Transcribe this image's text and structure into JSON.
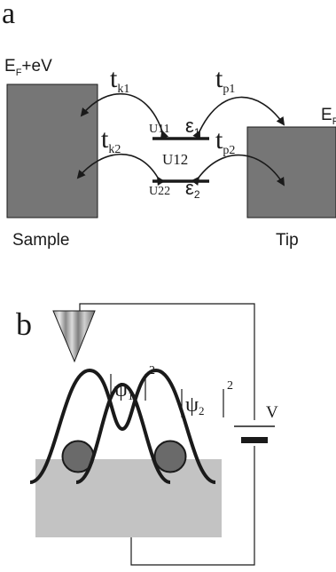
{
  "panel_a": {
    "label": "a",
    "ef_ev": {
      "main": "E",
      "sub": "F",
      "rest": "+eV"
    },
    "ef_tip": {
      "main": "E",
      "sub": "F"
    },
    "t_k1": {
      "main": "t",
      "sub": "k1"
    },
    "t_k2": {
      "main": "t",
      "sub": "k2"
    },
    "t_p1": {
      "main": "t",
      "sub": "p1"
    },
    "t_p2": {
      "main": "t",
      "sub": "p2"
    },
    "u11": "U11",
    "u12": "U12",
    "u22": "U22",
    "eps1": {
      "main": "ε",
      "sub": "1"
    },
    "eps2": {
      "main": "ε",
      "sub": "2"
    },
    "sample": "Sample",
    "tip": "Tip"
  },
  "panel_b": {
    "label": "b",
    "psi1": {
      "main": "ψ",
      "sub": "1",
      "sup": "2"
    },
    "psi2": {
      "main": "ψ",
      "sub": "2",
      "sup": "2"
    },
    "voltage": "V"
  },
  "colors": {
    "electrode_fill": "#767676",
    "substrate_fill": "#c3c3c3",
    "atom_fill": "#6a6a6a",
    "line": "#1a1a1a"
  }
}
